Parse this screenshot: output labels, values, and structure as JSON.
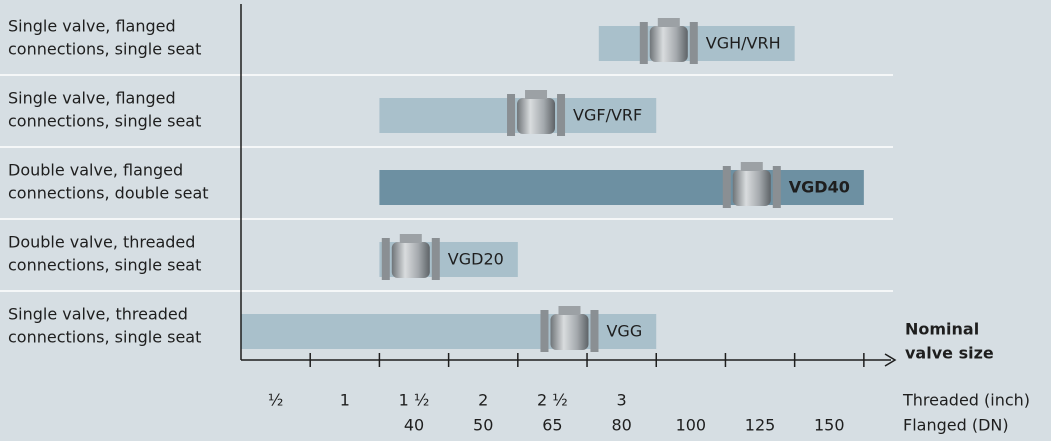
{
  "chart_data": {
    "type": "range_bar",
    "categories": [
      [
        "Single valve, flanged",
        "connections, single seat"
      ],
      [
        "Single valve, flanged",
        "connections, single seat"
      ],
      [
        "Double valve, flanged",
        "connections, double seat"
      ],
      [
        "Double valve, threaded",
        "connections, single seat"
      ],
      [
        "Single valve, threaded",
        "connections, single seat"
      ]
    ],
    "bar_labels": [
      "VGH/VRH",
      "VGF/VRF",
      "VGD40",
      "VGD20",
      "VGG"
    ],
    "starts": [
      5.17,
      2,
      2,
      2,
      0
    ],
    "ends": [
      8,
      6,
      9,
      4,
      6
    ],
    "colors": [
      "#a9c0cb",
      "#a9c0cb",
      "#6d90a2",
      "#a9c0cb",
      "#a9c0cb"
    ],
    "bold": [
      false,
      false,
      true,
      false,
      false
    ],
    "xlim": [
      0,
      9.45
    ],
    "xticks": [
      1,
      2,
      3,
      4,
      5,
      6,
      7,
      8,
      9
    ],
    "size_rows": [
      {
        "name": "Threaded (inch)",
        "labels": [
          "½",
          "1",
          "1 ½",
          "2",
          "2 ½",
          "3",
          null,
          null,
          null
        ]
      },
      {
        "name": "Flanged (DN)",
        "labels": [
          null,
          null,
          "40",
          "50",
          "65",
          "80",
          "100",
          "125",
          "150"
        ]
      }
    ],
    "x_label": [
      "Nominal",
      "valve size"
    ]
  }
}
